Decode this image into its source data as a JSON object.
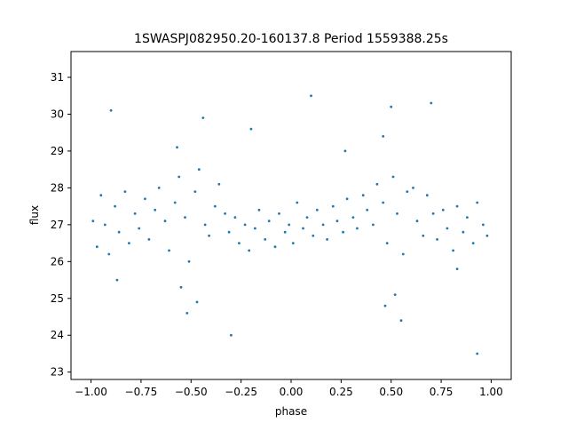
{
  "chart_data": {
    "type": "scatter",
    "title": "1SWASPJ082950.20-160137.8 Period 1559388.25s",
    "xlabel": "phase",
    "ylabel": "flux",
    "xlim": [
      -1.1,
      1.1
    ],
    "ylim": [
      22.8,
      31.7
    ],
    "x_ticks": [
      -1.0,
      -0.75,
      -0.5,
      -0.25,
      0.0,
      0.25,
      0.5,
      0.75,
      1.0
    ],
    "x_tick_labels": [
      "−1.00",
      "−0.75",
      "−0.50",
      "−0.25",
      "0.00",
      "0.25",
      "0.50",
      "0.75",
      "1.00"
    ],
    "y_ticks": [
      23,
      24,
      25,
      26,
      27,
      28,
      29,
      30,
      31
    ],
    "y_tick_labels": [
      "23",
      "24",
      "25",
      "26",
      "27",
      "28",
      "29",
      "30",
      "31"
    ],
    "grid": false,
    "legend": "none",
    "marker_color": "#1f77b4",
    "series": [
      {
        "points": [
          [
            -0.99,
            27.1
          ],
          [
            -0.97,
            26.4
          ],
          [
            -0.95,
            27.8
          ],
          [
            -0.93,
            27.0
          ],
          [
            -0.91,
            26.2
          ],
          [
            -0.88,
            27.5
          ],
          [
            -0.86,
            26.8
          ],
          [
            -0.83,
            27.9
          ],
          [
            -0.81,
            26.5
          ],
          [
            -0.78,
            27.3
          ],
          [
            -0.76,
            26.9
          ],
          [
            -0.73,
            27.7
          ],
          [
            -0.71,
            26.6
          ],
          [
            -0.68,
            27.4
          ],
          [
            -0.66,
            28.0
          ],
          [
            -0.63,
            27.1
          ],
          [
            -0.61,
            26.3
          ],
          [
            -0.58,
            27.6
          ],
          [
            -0.56,
            28.3
          ],
          [
            -0.53,
            27.2
          ],
          [
            -0.51,
            26.0
          ],
          [
            -0.48,
            27.9
          ],
          [
            -0.46,
            28.5
          ],
          [
            -0.43,
            27.0
          ],
          [
            -0.41,
            26.7
          ],
          [
            -0.38,
            27.5
          ],
          [
            -0.36,
            28.1
          ],
          [
            -0.33,
            27.3
          ],
          [
            -0.31,
            26.8
          ],
          [
            -0.28,
            27.2
          ],
          [
            -0.26,
            26.5
          ],
          [
            -0.23,
            27.0
          ],
          [
            -0.21,
            26.3
          ],
          [
            -0.18,
            26.9
          ],
          [
            -0.16,
            27.4
          ],
          [
            -0.13,
            26.6
          ],
          [
            -0.11,
            27.1
          ],
          [
            -0.08,
            26.4
          ],
          [
            -0.06,
            27.3
          ],
          [
            -0.03,
            26.8
          ],
          [
            -0.01,
            27.0
          ],
          [
            0.01,
            26.5
          ],
          [
            0.03,
            27.6
          ],
          [
            0.06,
            26.9
          ],
          [
            0.08,
            27.2
          ],
          [
            0.11,
            26.7
          ],
          [
            0.13,
            27.4
          ],
          [
            0.16,
            27.0
          ],
          [
            0.18,
            26.6
          ],
          [
            0.21,
            27.5
          ],
          [
            0.23,
            27.1
          ],
          [
            0.26,
            26.8
          ],
          [
            0.28,
            27.7
          ],
          [
            0.31,
            27.2
          ],
          [
            0.33,
            26.9
          ],
          [
            0.36,
            27.8
          ],
          [
            0.38,
            27.4
          ],
          [
            0.41,
            27.0
          ],
          [
            0.43,
            28.1
          ],
          [
            0.46,
            27.6
          ],
          [
            0.48,
            26.5
          ],
          [
            0.51,
            28.3
          ],
          [
            0.53,
            27.3
          ],
          [
            0.56,
            26.2
          ],
          [
            0.58,
            27.9
          ],
          [
            0.61,
            28.0
          ],
          [
            0.63,
            27.1
          ],
          [
            0.66,
            26.7
          ],
          [
            0.68,
            27.8
          ],
          [
            0.71,
            27.3
          ],
          [
            0.73,
            26.6
          ],
          [
            0.76,
            27.4
          ],
          [
            0.78,
            26.9
          ],
          [
            0.81,
            26.3
          ],
          [
            0.83,
            27.5
          ],
          [
            0.86,
            26.8
          ],
          [
            0.88,
            27.2
          ],
          [
            0.91,
            26.5
          ],
          [
            0.93,
            27.6
          ],
          [
            0.96,
            27.0
          ],
          [
            0.98,
            26.7
          ],
          [
            -0.52,
            24.6
          ],
          [
            -0.47,
            24.9
          ],
          [
            -0.55,
            25.3
          ],
          [
            0.47,
            24.8
          ],
          [
            0.52,
            25.1
          ],
          [
            0.55,
            24.4
          ],
          [
            -0.44,
            29.9
          ],
          [
            0.5,
            30.2
          ],
          [
            0.46,
            29.4
          ],
          [
            -0.57,
            29.1
          ],
          [
            0.1,
            30.5
          ],
          [
            -0.9,
            30.1
          ],
          [
            0.93,
            23.5
          ],
          [
            -0.3,
            24.0
          ],
          [
            -0.87,
            25.5
          ],
          [
            0.83,
            25.8
          ],
          [
            -0.2,
            29.6
          ],
          [
            0.27,
            29.0
          ],
          [
            0.7,
            30.3
          ]
        ]
      }
    ]
  }
}
